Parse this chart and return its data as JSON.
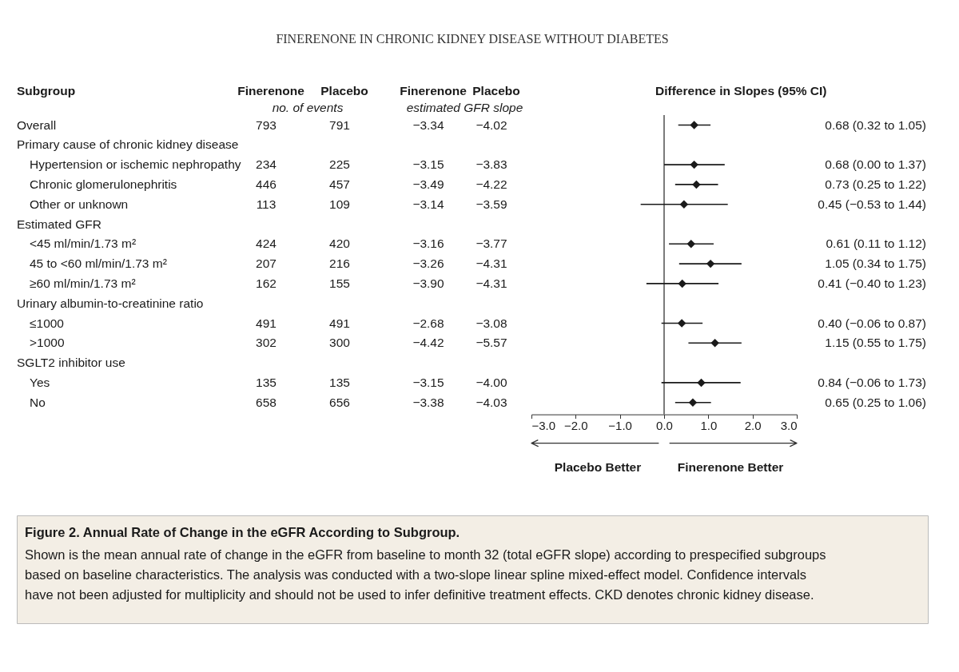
{
  "chart_data": [
    {
      "type": "other",
      "title": "FINERENONE IN CHRONIC KIDNEY DISEASE WITHOUT DIABETES",
      "ylabel": "Subgroup",
      "categories": [
        "Finerenone",
        "Placebo",
        "Finerenone",
        "Placebo"
      ],
      "annotations": [
        "no. of events",
        "estimated GFR slope"
      ],
      "y_categories": [
        "Overall",
        "Primary cause of chronic kidney disease",
        "Hypertension or ischemic nephropathy",
        "Chronic glomerulonephritis",
        "Other or unknown",
        "Estimated GFR",
        "<45 ml/min/1.73 m²",
        "45 to <60 ml/min/1.73 m²",
        "≥60 ml/min/1.73 m²",
        "Urinary albumin-to-creatinine ratio",
        "≤1000",
        ">1000",
        "SGLT2 inhibitor use",
        "Yes",
        "No"
      ],
      "cell_labels": [
        [
          "793",
          "791",
          "−3.34",
          "−4.02"
        ],
        null,
        [
          "234",
          "225",
          "−3.15",
          "−3.83"
        ],
        [
          "446",
          "457",
          "−3.49",
          "−4.22"
        ],
        [
          "113",
          "109",
          "−3.14",
          "−3.59"
        ],
        null,
        [
          "424",
          "420",
          "−3.16",
          "−3.77"
        ],
        [
          "207",
          "216",
          "−3.26",
          "−4.31"
        ],
        [
          "162",
          "155",
          "−3.90",
          "−4.31"
        ],
        null,
        [
          "491",
          "491",
          "−2.68",
          "−3.08"
        ],
        [
          "302",
          "300",
          "−4.42",
          "−5.57"
        ],
        null,
        [
          "135",
          "135",
          "−3.15",
          "−4.00"
        ],
        [
          "658",
          "656",
          "−3.38",
          "−4.03"
        ]
      ]
    },
    {
      "type": "scatter",
      "orientation": "horizontal",
      "title": "Difference in Slopes (95% CI)",
      "marker": "diamond",
      "color": "#1a1a1a",
      "categories": [
        null,
        null,
        null,
        null,
        null,
        null,
        null,
        null,
        null,
        null,
        null,
        null,
        null,
        null,
        null
      ],
      "values": [
        0.68,
        null,
        0.68,
        0.73,
        0.45,
        null,
        0.61,
        1.05,
        0.41,
        null,
        0.4,
        1.15,
        null,
        0.84,
        0.65
      ],
      "errors": [
        [
          0.32,
          1.05
        ],
        null,
        [
          0.0,
          1.37
        ],
        [
          0.25,
          1.22
        ],
        [
          -0.53,
          1.44
        ],
        null,
        [
          0.11,
          1.12
        ],
        [
          0.34,
          1.75
        ],
        [
          -0.4,
          1.23
        ],
        null,
        [
          -0.06,
          0.87
        ],
        [
          0.55,
          1.75
        ],
        null,
        [
          -0.06,
          1.73
        ],
        [
          0.25,
          1.06
        ]
      ],
      "value_labels": [
        "0.68 (0.32 to 1.05)",
        null,
        "0.68 (0.00 to 1.37)",
        "0.73 (0.25 to 1.22)",
        "0.45 (−0.53 to 1.44)",
        null,
        "0.61 (0.11 to 1.12)",
        "1.05 (0.34 to 1.75)",
        "0.41 (−0.40 to 1.23)",
        null,
        "0.40 (−0.06 to 0.87)",
        "1.15 (0.55 to 1.75)",
        null,
        "0.84 (−0.06 to 1.73)",
        "0.65 (0.25 to 1.06)"
      ],
      "xlim": [
        -3,
        3
      ],
      "xticks": [
        {
          "value": -3,
          "label": "−3.0"
        },
        {
          "value": -2,
          "label": "−2.0"
        },
        {
          "value": -1,
          "label": "−1.0"
        },
        {
          "value": 0,
          "label": "0.0"
        },
        {
          "value": 1,
          "label": "1.0"
        },
        {
          "value": 2,
          "label": "2.0"
        },
        {
          "value": 3,
          "label": "3.0"
        }
      ],
      "ref_lines": [
        {
          "axis": "x",
          "value": 0,
          "label": null,
          "color": "#333333"
        }
      ],
      "annotations": [
        "Placebo Better",
        "Finerenone Better"
      ],
      "tick_labels": "x",
      "grid": false
    },
    {
      "type": "other",
      "title": "Figure 2. Annual Rate of Change in the eGFR According to Subgroup.",
      "annotations": [
        "Shown is the mean annual rate of change in the eGFR from baseline to month 32 (total eGFR slope) according to prespecified subgroups",
        "based on baseline characteristics. The analysis was conducted with a two-slope linear spline mixed-effect model. Confidence intervals",
        "have not been adjusted for multiplicity and should not be used to infer definitive treatment effects. CKD denotes chronic kidney disease."
      ]
    }
  ]
}
